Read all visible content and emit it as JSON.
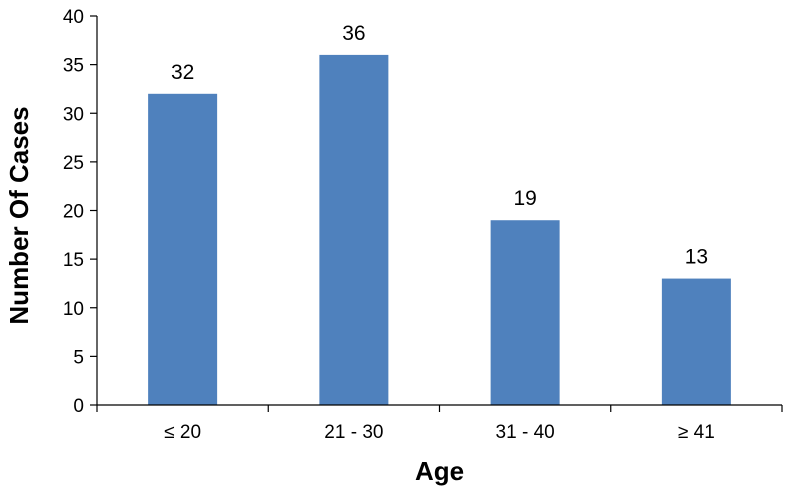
{
  "chart_data": {
    "type": "bar",
    "title": "",
    "xlabel": "Age",
    "ylabel": "Number Of Cases",
    "categories": [
      "≤ 20",
      "21 - 30",
      "31 - 40",
      "≥ 41"
    ],
    "values": [
      32,
      36,
      19,
      13
    ],
    "data_labels": [
      "32",
      "36",
      "19",
      "13"
    ],
    "ylim": [
      0,
      40
    ],
    "yticks": [
      0,
      5,
      10,
      15,
      20,
      25,
      30,
      35,
      40
    ],
    "grid": false,
    "legend": "none",
    "bar_color": "#4f81bd"
  }
}
